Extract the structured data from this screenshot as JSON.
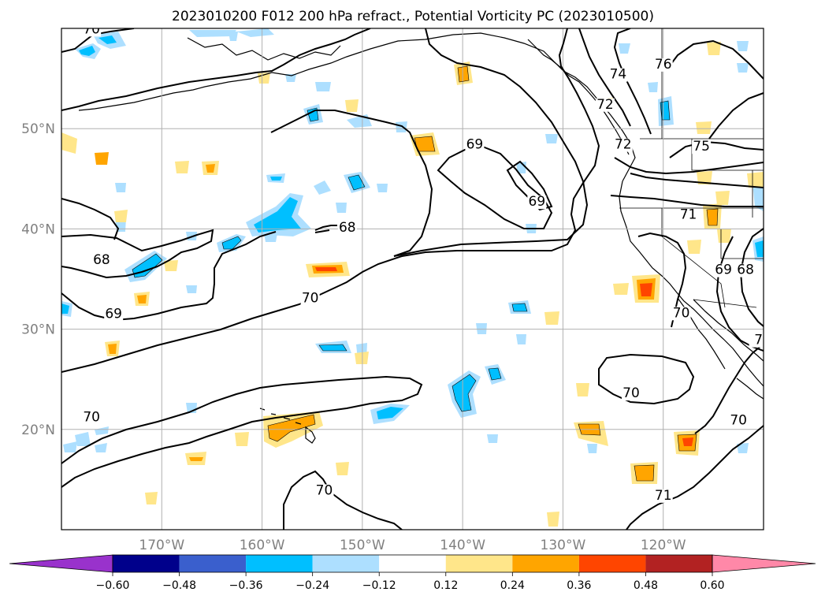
{
  "chart_data": {
    "type": "map-contour",
    "title": "2023010200 F012 200 hPa refract., Potential Vorticity PC (2023010500)",
    "lon_range": [
      -180,
      -110
    ],
    "lat_range": [
      10,
      60
    ],
    "grid": true,
    "x_ticks": [
      {
        "value": -170,
        "label": "170°W"
      },
      {
        "value": -160,
        "label": "160°W"
      },
      {
        "value": -150,
        "label": "150°W"
      },
      {
        "value": -140,
        "label": "140°W"
      },
      {
        "value": -130,
        "label": "130°W"
      },
      {
        "value": -120,
        "label": "120°W"
      }
    ],
    "y_ticks": [
      {
        "value": 20,
        "label": "20°N"
      },
      {
        "value": 30,
        "label": "30°N"
      },
      {
        "value": 40,
        "label": "40°N"
      },
      {
        "value": 50,
        "label": "50°N"
      }
    ],
    "contour_labels": [
      {
        "text": "70",
        "lon": -177,
        "lat": 59.5
      },
      {
        "text": "69",
        "lon": -138.8,
        "lat": 48.0
      },
      {
        "text": "69",
        "lon": -132.6,
        "lat": 42.3
      },
      {
        "text": "68",
        "lon": -151.5,
        "lat": 39.7
      },
      {
        "text": "68",
        "lon": -176.0,
        "lat": 36.5
      },
      {
        "text": "69",
        "lon": -174.8,
        "lat": 31.1
      },
      {
        "text": "70",
        "lon": -155.2,
        "lat": 32.7
      },
      {
        "text": "74",
        "lon": -124.5,
        "lat": 55.0
      },
      {
        "text": "76",
        "lon": -120.0,
        "lat": 56.0
      },
      {
        "text": "72",
        "lon": -125.8,
        "lat": 52.0
      },
      {
        "text": "72",
        "lon": -124.0,
        "lat": 48.0
      },
      {
        "text": "75",
        "lon": -116.2,
        "lat": 47.8
      },
      {
        "text": "71",
        "lon": -117.5,
        "lat": 41.0
      },
      {
        "text": "69",
        "lon": -114.0,
        "lat": 35.5
      },
      {
        "text": "68",
        "lon": -111.8,
        "lat": 35.5
      },
      {
        "text": "70",
        "lon": -118.2,
        "lat": 31.2
      },
      {
        "text": "70",
        "lon": -123.2,
        "lat": 23.2
      },
      {
        "text": "70",
        "lon": -112.5,
        "lat": 20.5
      },
      {
        "text": "70",
        "lon": -177.0,
        "lat": 20.8
      },
      {
        "text": "70",
        "lon": -153.8,
        "lat": 13.5
      },
      {
        "text": "71",
        "lon": -120.0,
        "lat": 13.0
      },
      {
        "text": "7",
        "lon": -110.5,
        "lat": 28.5
      }
    ],
    "colorbar": {
      "levels": [
        -0.6,
        -0.48,
        -0.36,
        -0.24,
        -0.12,
        0.12,
        0.24,
        0.36,
        0.48,
        0.6
      ],
      "tick_labels": [
        "−0.60",
        "−0.48",
        "−0.36",
        "−0.24",
        "−0.12",
        "0.12",
        "0.24",
        "0.36",
        "0.48",
        "0.60"
      ],
      "colors": [
        "#9932CC",
        "#00008B",
        "#3A5FCD",
        "#00BFFF",
        "#ADDFFF",
        "#FFFFFF",
        "#FFE68A",
        "#FFA500",
        "#FF4500",
        "#B22222",
        "#FF88A8"
      ],
      "extend": "both"
    }
  }
}
